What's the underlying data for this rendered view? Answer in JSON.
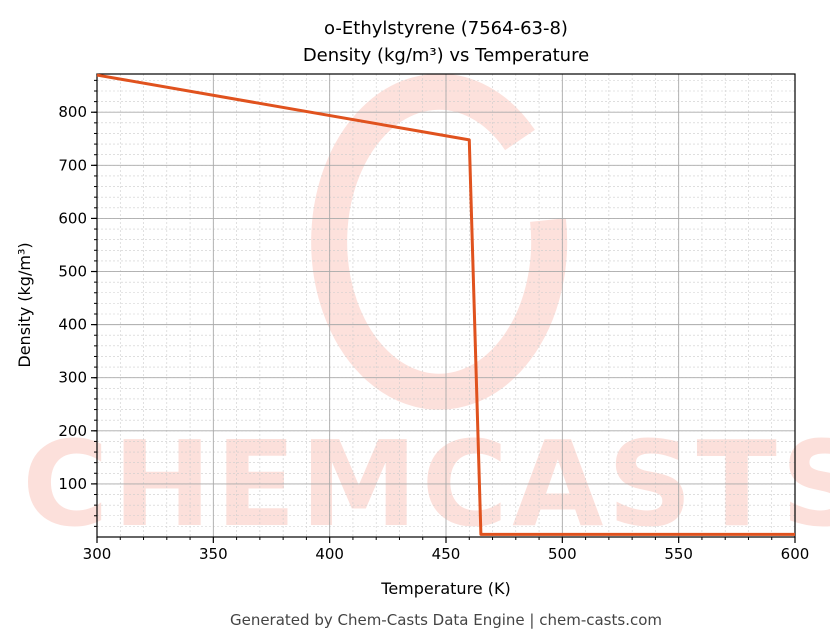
{
  "chart_data": {
    "type": "line",
    "title": "o-Ethylstyrene (7564-63-8)",
    "subtitle": "Density (kg/m³) vs Temperature",
    "xlabel": "Temperature (K)",
    "ylabel": "Density (kg/m³)",
    "xlim": [
      300,
      600
    ],
    "ylim": [
      0,
      872
    ],
    "xticks": [
      300,
      350,
      400,
      450,
      500,
      550,
      600
    ],
    "yticks": [
      100,
      200,
      300,
      400,
      500,
      600,
      700,
      800
    ],
    "grid": true,
    "series": [
      {
        "color": "#e0521e",
        "x": [
          300,
          460,
          465,
          600
        ],
        "y": [
          870,
          748,
          5,
          5
        ]
      }
    ]
  },
  "watermark": "CHEMCASTS",
  "footer": "Generated by Chem-Casts Data Engine | chem-casts.com"
}
